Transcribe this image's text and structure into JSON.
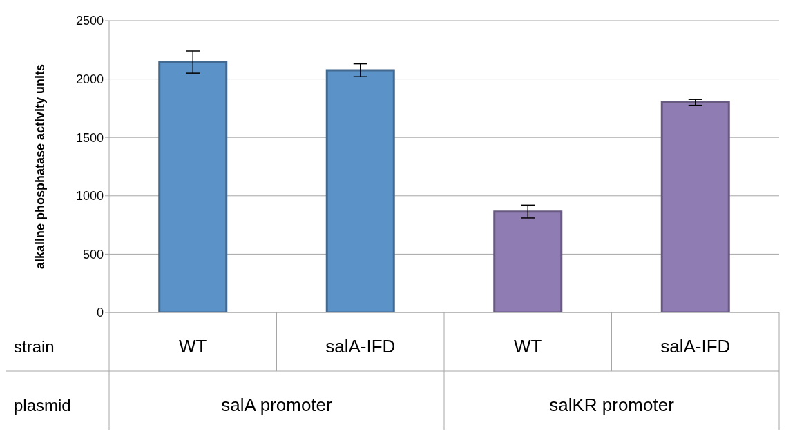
{
  "chart_data": {
    "type": "bar",
    "ylabel": "alkaline phosphatase activity units",
    "categories": [
      "WT",
      "salA-IFD",
      "WT",
      "salA-IFD"
    ],
    "values": [
      2145,
      2075,
      865,
      1800
    ],
    "errors": [
      95,
      55,
      55,
      25
    ],
    "colors": [
      "#5b92c8",
      "#5b92c8",
      "#8f7cb2",
      "#8f7cb2"
    ],
    "ylim": [
      0,
      2500
    ],
    "yticks": [
      0,
      500,
      1000,
      1500,
      2000,
      2500
    ],
    "grid": "y",
    "annotations": [
      "strain",
      "plasmid",
      "salA promoter",
      "salKR promoter"
    ]
  }
}
